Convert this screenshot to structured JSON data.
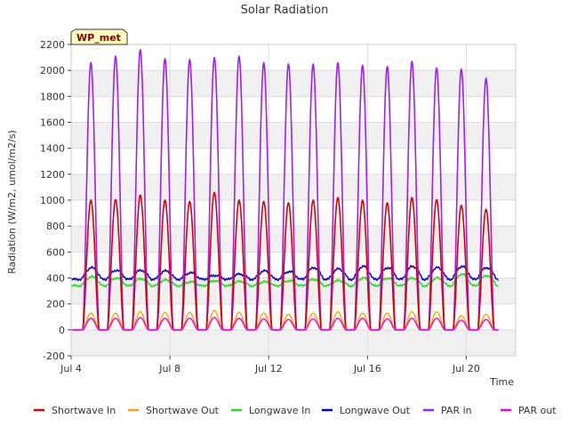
{
  "chart_data": {
    "type": "line",
    "title": "Solar Radiation",
    "xlabel": "Time",
    "ylabel": "Radiation (W/m2, umol/m2/s)",
    "ylim": [
      -200,
      2200
    ],
    "yticks": [
      -200,
      0,
      200,
      400,
      600,
      800,
      1000,
      1200,
      1400,
      1600,
      1800,
      2000,
      2200
    ],
    "xlim_days": [
      4,
      22
    ],
    "xticks": [
      {
        "day": 4,
        "label": "Jul 4"
      },
      {
        "day": 8,
        "label": "Jul 8"
      },
      {
        "day": 12,
        "label": "Jul 12"
      },
      {
        "day": 16,
        "label": "Jul 16"
      },
      {
        "day": 20,
        "label": "Jul 20"
      }
    ],
    "grid": true,
    "banded_background": true,
    "site_label": "WP_met",
    "daily_peaks": {
      "days": [
        4.8,
        5.8,
        6.8,
        7.8,
        8.8,
        9.8,
        10.8,
        11.8,
        12.8,
        13.8,
        14.8,
        15.8,
        16.8,
        17.8,
        18.8,
        19.8,
        20.8
      ],
      "par_in": [
        2060,
        2110,
        2160,
        2090,
        2085,
        2100,
        2110,
        2060,
        2050,
        2050,
        2060,
        2040,
        2030,
        2070,
        2020,
        2010,
        1940
      ],
      "shortwave_in": [
        1000,
        1005,
        1040,
        1000,
        990,
        1060,
        1000,
        990,
        980,
        1000,
        1020,
        1000,
        980,
        1020,
        1005,
        960,
        930
      ],
      "shortwave_out": [
        130,
        130,
        140,
        135,
        135,
        150,
        135,
        130,
        120,
        130,
        140,
        130,
        130,
        140,
        140,
        110,
        120
      ],
      "par_out": [
        90,
        90,
        95,
        90,
        90,
        95,
        90,
        85,
        80,
        85,
        90,
        90,
        85,
        90,
        90,
        75,
        80
      ],
      "longwave_in": [
        410,
        400,
        395,
        385,
        370,
        380,
        375,
        370,
        380,
        390,
        380,
        400,
        400,
        400,
        400,
        430,
        420
      ],
      "longwave_out": [
        480,
        460,
        460,
        455,
        440,
        420,
        430,
        455,
        450,
        480,
        470,
        490,
        480,
        490,
        480,
        490,
        480
      ],
      "longwave_in_night": 340,
      "longwave_out_night": 390
    },
    "series": [
      {
        "name": "Shortwave In",
        "color": "#dd0000",
        "key": "shortwave_in"
      },
      {
        "name": "Shortwave Out",
        "color": "#ffa500",
        "key": "shortwave_out"
      },
      {
        "name": "Longwave In",
        "color": "#22dd22",
        "key": "longwave_in"
      },
      {
        "name": "Longwave Out",
        "color": "#0000cc",
        "key": "longwave_out"
      },
      {
        "name": "PAR in",
        "color": "#a020f0",
        "key": "par_in"
      },
      {
        "name": "PAR out",
        "color": "#ee00ee",
        "key": "par_out"
      }
    ]
  }
}
